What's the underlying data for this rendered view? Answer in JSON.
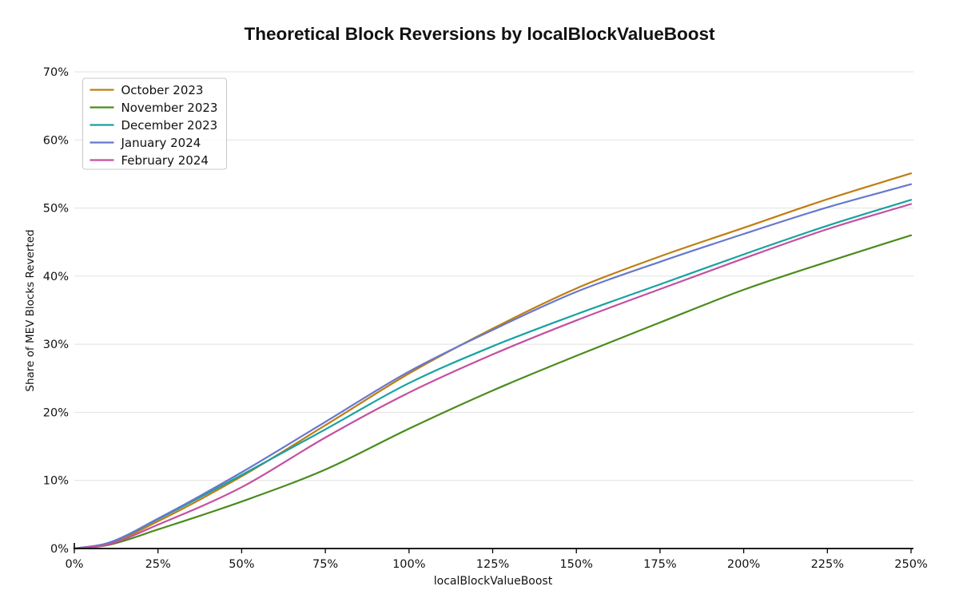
{
  "chart_data": {
    "type": "line",
    "title": "Theoretical Block Reversions by localBlockValueBoost",
    "xlabel": "localBlockValueBoost",
    "ylabel": "Share of MEV Blocks Reverted",
    "xlim": [
      0,
      250
    ],
    "ylim": [
      0,
      70
    ],
    "x_tick_step": 25,
    "y_tick_step": 10,
    "x_tick_labels": [
      "0%",
      "25%",
      "50%",
      "75%",
      "100%",
      "125%",
      "150%",
      "175%",
      "200%",
      "225%",
      "250%"
    ],
    "y_tick_labels": [
      "0%",
      "10%",
      "20%",
      "30%",
      "40%",
      "50%",
      "60%",
      "70%"
    ],
    "grid": "horizontal-only",
    "legend_position": "upper-left",
    "x": [
      0,
      10,
      25,
      50,
      75,
      100,
      125,
      150,
      175,
      200,
      225,
      250
    ],
    "series": [
      {
        "name": "October 2023",
        "color": "#bf7d11",
        "values": [
          0,
          0.7,
          4.0,
          10.6,
          18.1,
          25.7,
          32.3,
          38.2,
          42.9,
          47.1,
          51.3,
          55.1
        ]
      },
      {
        "name": "November 2023",
        "color": "#4a8c1d",
        "values": [
          0,
          0.5,
          2.8,
          6.9,
          11.6,
          17.6,
          23.2,
          28.3,
          33.2,
          38.0,
          42.1,
          46.0
        ]
      },
      {
        "name": "December 2023",
        "color": "#17a2a2",
        "values": [
          0,
          0.8,
          4.3,
          10.8,
          17.5,
          24.3,
          29.7,
          34.4,
          38.8,
          43.2,
          47.4,
          51.2
        ]
      },
      {
        "name": "January 2024",
        "color": "#6678ce",
        "values": [
          0,
          0.8,
          4.4,
          11.2,
          18.6,
          26.0,
          32.1,
          37.7,
          42.1,
          46.2,
          50.1,
          53.5
        ]
      },
      {
        "name": "February 2024",
        "color": "#c44fa0",
        "values": [
          0,
          0.6,
          3.5,
          9.0,
          16.3,
          22.9,
          28.5,
          33.5,
          38.1,
          42.6,
          46.9,
          50.6
        ]
      }
    ]
  },
  "style": {
    "grid_color": "#e1e1e1",
    "axis_color": "#000000",
    "text_color": "#111111",
    "legend_border": "#c9c9c9",
    "legend_bg": "#ffffff"
  }
}
